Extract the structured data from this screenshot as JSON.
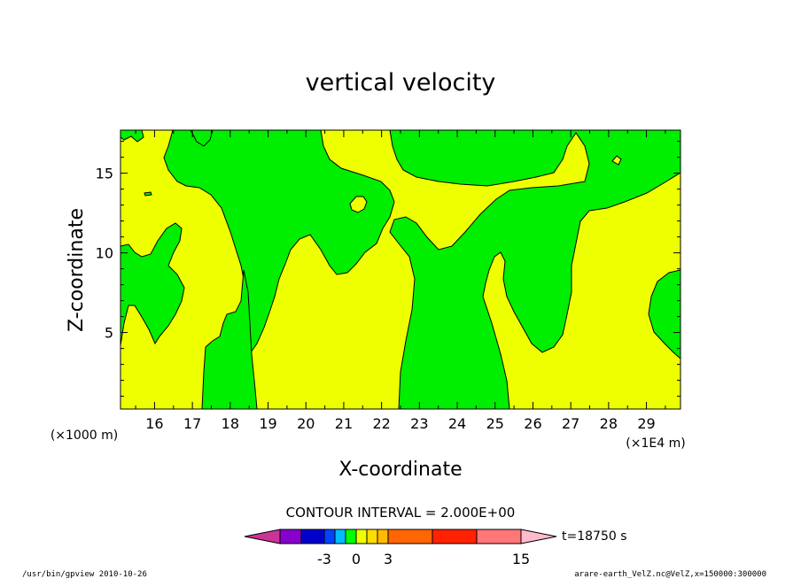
{
  "chart_data": {
    "type": "heatmap",
    "title": "vertical velocity",
    "xlabel": "X-coordinate",
    "ylabel": "Z-coordinate",
    "x_offset_label": "(×1000 m)",
    "x_scale_label": "(×1E4 m)",
    "xlim": [
      15.1,
      29.9
    ],
    "ylim": [
      0.2,
      17.7
    ],
    "x_ticks": [
      16,
      17,
      18,
      19,
      20,
      21,
      22,
      23,
      24,
      25,
      26,
      27,
      28,
      29
    ],
    "y_ticks": [
      5,
      10,
      15
    ],
    "contour_interval": "CONTOUR INTERVAL = 2.000E+00",
    "time_label": "t=18750 s",
    "colorbar": {
      "tick_labels": [
        "-3",
        "0",
        "3",
        "15"
      ],
      "colors": [
        "#cc3399",
        "#8800cc",
        "#0000cc",
        "#0044ff",
        "#00bbff",
        "#00ff00",
        "#eeff00",
        "#ffdd00",
        "#ffbb00",
        "#ff6600",
        "#ff2200",
        "#ff7777",
        "#ffbbcc"
      ]
    },
    "background_color": "#eeff00",
    "region_color": "#00ee00"
  },
  "footer": {
    "left": "/usr/bin/gpview   2010-10-26",
    "right": "arare-earth_VelZ.nc@VelZ,x=150000:300000"
  }
}
